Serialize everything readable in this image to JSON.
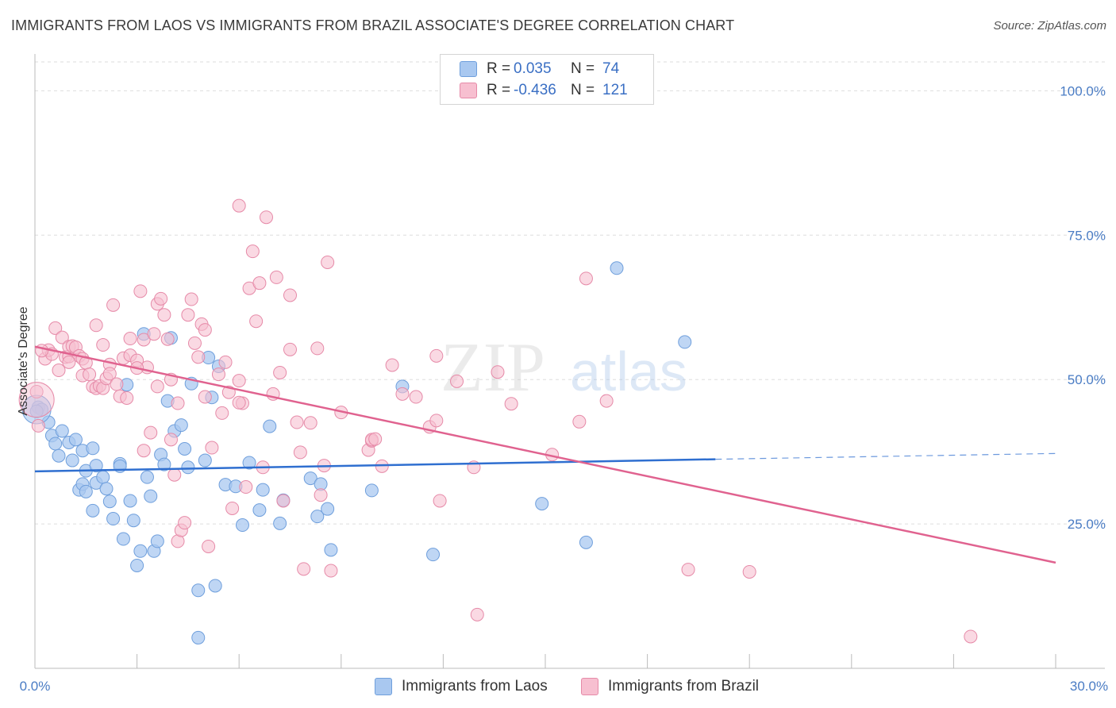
{
  "title": "IMMIGRANTS FROM LAOS VS IMMIGRANTS FROM BRAZIL ASSOCIATE'S DEGREE CORRELATION CHART",
  "source": "Source: ZipAtlas.com",
  "watermark": {
    "zip": "ZIP",
    "atlas": "atlas"
  },
  "legend": {
    "rows": [
      {
        "r_label": "R =",
        "r_value": "0.035",
        "n_label": "N =",
        "n_value": "74"
      },
      {
        "r_label": "R =",
        "r_value": "-0.436",
        "n_label": "N =",
        "n_value": "121"
      }
    ]
  },
  "bottom_legend": {
    "series1": "Immigrants from Laos",
    "series2": "Immigrants from Brazil"
  },
  "colors": {
    "laos_fill": "#a9c8f0",
    "laos_stroke": "#6f9fdc",
    "laos_line": "#2f6fd0",
    "brazil_fill": "#f7bfd0",
    "brazil_stroke": "#e68aa8",
    "brazil_line": "#e0628f",
    "axis_text": "#4a7cc4",
    "grid": "#dddddd"
  },
  "chart_data": {
    "type": "scatter",
    "ylabel": "Associate's Degree",
    "xlabel": "",
    "xlim": [
      0,
      30
    ],
    "ylim": [
      0,
      105
    ],
    "x_tick_labels": [
      "0.0%",
      "30.0%"
    ],
    "y_ticks": [
      25,
      50,
      75,
      100
    ],
    "y_tick_labels": [
      "25.0%",
      "50.0%",
      "75.0%",
      "100.0%"
    ],
    "grid": true,
    "legend_position": "top-center",
    "series": [
      {
        "name": "Immigrants from Laos",
        "points": [
          [
            0.1,
            45.2
          ],
          [
            0.2,
            44.8
          ],
          [
            0.4,
            42.6
          ],
          [
            0.5,
            40.3
          ],
          [
            0.6,
            38.9
          ],
          [
            0.7,
            36.8
          ],
          [
            0.8,
            41.1
          ],
          [
            1.0,
            39.1
          ],
          [
            1.1,
            36.0
          ],
          [
            1.2,
            39.6
          ],
          [
            1.3,
            30.9
          ],
          [
            1.4,
            37.7
          ],
          [
            1.4,
            31.9
          ],
          [
            1.5,
            34.2
          ],
          [
            1.5,
            30.6
          ],
          [
            1.7,
            38.1
          ],
          [
            1.7,
            27.3
          ],
          [
            1.8,
            35.1
          ],
          [
            1.8,
            32.1
          ],
          [
            2.0,
            33.1
          ],
          [
            2.1,
            31.1
          ],
          [
            2.2,
            28.9
          ],
          [
            2.3,
            25.9
          ],
          [
            2.5,
            35.4
          ],
          [
            2.6,
            22.4
          ],
          [
            2.7,
            49.1
          ],
          [
            2.8,
            29.0
          ],
          [
            2.9,
            25.6
          ],
          [
            3.0,
            17.8
          ],
          [
            3.1,
            20.3
          ],
          [
            3.2,
            57.9
          ],
          [
            3.3,
            33.1
          ],
          [
            3.4,
            29.8
          ],
          [
            3.5,
            20.3
          ],
          [
            3.6,
            22.0
          ],
          [
            3.7,
            37.0
          ],
          [
            3.8,
            35.3
          ],
          [
            3.9,
            46.3
          ],
          [
            4.0,
            57.2
          ],
          [
            4.1,
            41.1
          ],
          [
            4.3,
            42.1
          ],
          [
            4.4,
            38.0
          ],
          [
            4.5,
            34.8
          ],
          [
            4.6,
            49.3
          ],
          [
            4.8,
            5.3
          ],
          [
            4.8,
            13.5
          ],
          [
            5.0,
            36.0
          ],
          [
            5.1,
            53.8
          ],
          [
            5.2,
            46.9
          ],
          [
            5.3,
            14.3
          ],
          [
            5.4,
            52.3
          ],
          [
            5.6,
            31.8
          ],
          [
            5.9,
            31.5
          ],
          [
            6.1,
            24.8
          ],
          [
            6.3,
            35.6
          ],
          [
            6.6,
            27.4
          ],
          [
            6.7,
            30.9
          ],
          [
            6.9,
            41.9
          ],
          [
            7.2,
            25.1
          ],
          [
            7.3,
            29.1
          ],
          [
            8.1,
            32.9
          ],
          [
            8.3,
            26.3
          ],
          [
            8.4,
            31.9
          ],
          [
            8.6,
            27.6
          ],
          [
            8.7,
            20.5
          ],
          [
            9.9,
            30.8
          ],
          [
            10.8,
            48.8
          ],
          [
            11.7,
            19.7
          ],
          [
            14.9,
            28.5
          ],
          [
            16.2,
            21.8
          ],
          [
            17.1,
            69.3
          ],
          [
            19.1,
            56.5
          ],
          [
            0.05,
            44.5
          ],
          [
            2.5,
            35.0
          ]
        ]
      },
      {
        "name": "Immigrants from Brazil",
        "points": [
          [
            0.05,
            47.9
          ],
          [
            0.1,
            42.0
          ],
          [
            0.3,
            53.6
          ],
          [
            0.4,
            55.1
          ],
          [
            0.5,
            54.4
          ],
          [
            0.6,
            58.9
          ],
          [
            0.7,
            51.6
          ],
          [
            0.8,
            57.3
          ],
          [
            0.9,
            53.9
          ],
          [
            1.0,
            54.0
          ],
          [
            1.0,
            55.7
          ],
          [
            1.1,
            55.8
          ],
          [
            1.2,
            55.6
          ],
          [
            1.3,
            54.1
          ],
          [
            1.4,
            50.7
          ],
          [
            1.4,
            53.6
          ],
          [
            1.5,
            52.9
          ],
          [
            1.6,
            50.9
          ],
          [
            1.7,
            48.8
          ],
          [
            1.8,
            59.4
          ],
          [
            1.8,
            48.5
          ],
          [
            1.9,
            48.9
          ],
          [
            2.0,
            48.5
          ],
          [
            2.1,
            50.2
          ],
          [
            2.2,
            52.6
          ],
          [
            2.2,
            51.0
          ],
          [
            2.3,
            62.9
          ],
          [
            2.4,
            49.2
          ],
          [
            2.5,
            47.1
          ],
          [
            2.6,
            53.7
          ],
          [
            2.7,
            46.8
          ],
          [
            2.8,
            57.1
          ],
          [
            2.8,
            54.2
          ],
          [
            3.0,
            53.3
          ],
          [
            3.1,
            65.3
          ],
          [
            3.2,
            56.9
          ],
          [
            3.2,
            37.7
          ],
          [
            3.3,
            52.1
          ],
          [
            3.4,
            40.8
          ],
          [
            3.5,
            57.9
          ],
          [
            3.6,
            63.1
          ],
          [
            3.6,
            48.8
          ],
          [
            3.7,
            64.0
          ],
          [
            3.8,
            61.2
          ],
          [
            3.9,
            57.0
          ],
          [
            4.0,
            39.6
          ],
          [
            4.1,
            33.5
          ],
          [
            4.2,
            22.0
          ],
          [
            4.2,
            45.9
          ],
          [
            4.3,
            23.9
          ],
          [
            4.4,
            25.2
          ],
          [
            4.5,
            61.2
          ],
          [
            4.6,
            63.9
          ],
          [
            4.7,
            56.3
          ],
          [
            4.8,
            53.9
          ],
          [
            4.9,
            59.6
          ],
          [
            5.0,
            58.6
          ],
          [
            5.1,
            21.1
          ],
          [
            5.2,
            38.2
          ],
          [
            5.4,
            50.9
          ],
          [
            5.5,
            44.2
          ],
          [
            5.6,
            53.0
          ],
          [
            5.7,
            47.8
          ],
          [
            5.8,
            27.7
          ],
          [
            6.0,
            49.8
          ],
          [
            6.0,
            80.1
          ],
          [
            6.1,
            45.9
          ],
          [
            6.2,
            31.4
          ],
          [
            6.3,
            65.8
          ],
          [
            6.4,
            72.2
          ],
          [
            6.5,
            60.1
          ],
          [
            6.6,
            66.7
          ],
          [
            6.7,
            34.8
          ],
          [
            6.8,
            78.1
          ],
          [
            7.0,
            47.5
          ],
          [
            7.1,
            67.7
          ],
          [
            7.2,
            51.2
          ],
          [
            7.3,
            29.0
          ],
          [
            7.5,
            55.2
          ],
          [
            7.5,
            64.6
          ],
          [
            7.7,
            42.6
          ],
          [
            7.8,
            37.4
          ],
          [
            7.9,
            17.2
          ],
          [
            8.1,
            42.5
          ],
          [
            8.3,
            55.4
          ],
          [
            8.4,
            30.0
          ],
          [
            8.5,
            35.1
          ],
          [
            8.6,
            70.3
          ],
          [
            8.7,
            16.9
          ],
          [
            9.0,
            44.3
          ],
          [
            9.8,
            37.8
          ],
          [
            9.9,
            39.4
          ],
          [
            9.9,
            39.6
          ],
          [
            10.0,
            39.7
          ],
          [
            10.2,
            35.0
          ],
          [
            10.5,
            52.5
          ],
          [
            10.8,
            47.5
          ],
          [
            11.2,
            47.0
          ],
          [
            11.6,
            41.8
          ],
          [
            11.8,
            42.9
          ],
          [
            11.8,
            54.1
          ],
          [
            11.9,
            29.0
          ],
          [
            12.4,
            49.7
          ],
          [
            12.9,
            34.8
          ],
          [
            13.0,
            9.3
          ],
          [
            13.6,
            51.3
          ],
          [
            14.0,
            45.8
          ],
          [
            15.2,
            37.0
          ],
          [
            16.0,
            42.7
          ],
          [
            16.2,
            67.5
          ],
          [
            16.8,
            46.3
          ],
          [
            19.2,
            17.1
          ],
          [
            21.0,
            16.7
          ],
          [
            27.5,
            5.5
          ],
          [
            0.2,
            55.0
          ],
          [
            1.0,
            53.0
          ],
          [
            2.0,
            56.0
          ],
          [
            3.0,
            52.0
          ],
          [
            4.0,
            50.0
          ],
          [
            5.0,
            47.0
          ],
          [
            6.0,
            46.0
          ]
        ]
      }
    ],
    "trendlines": [
      {
        "series": "Immigrants from Laos",
        "x": [
          0,
          20
        ],
        "y": [
          34.1,
          36.2
        ],
        "dashed_extension_to": [
          30,
          37.2
        ]
      },
      {
        "series": "Immigrants from Brazil",
        "x": [
          0,
          30
        ],
        "y": [
          55.7,
          18.3
        ]
      }
    ]
  }
}
